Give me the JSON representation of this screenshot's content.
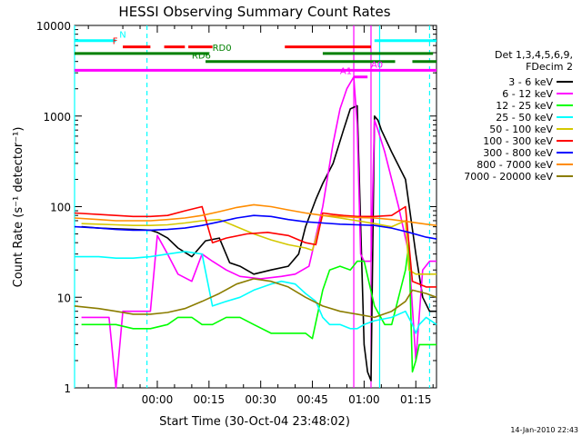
{
  "chart_data": {
    "type": "line",
    "title": "HESSI Observing Summary Count Rates",
    "xlabel": "Start Time (30-Oct-04 23:48:02)",
    "ylabel": "Count Rate (s⁻¹ detector⁻¹)",
    "timestamp": "14-Jan-2010 22:43",
    "y_scale": "log",
    "ylim": [
      1,
      10000
    ],
    "xlim_minutes": [
      -12,
      93
    ],
    "x_ticks": [
      {
        "min": 12,
        "label": "00:00"
      },
      {
        "min": 27,
        "label": "00:15"
      },
      {
        "min": 42,
        "label": "00:30"
      },
      {
        "min": 57,
        "label": "00:45"
      },
      {
        "min": 72,
        "label": "01:00"
      },
      {
        "min": 87,
        "label": "01:15"
      }
    ],
    "y_ticks": [
      {
        "value": 1,
        "label": "1"
      },
      {
        "value": 10,
        "label": "10"
      },
      {
        "value": 100,
        "label": "100"
      },
      {
        "value": 1000,
        "label": "1000"
      },
      {
        "value": 10000,
        "label": "10000"
      }
    ],
    "legend_title": [
      "Det 1,3,4,5,6,9,",
      "FDecim 2"
    ],
    "legend_position": "right",
    "series": [
      {
        "name": "3 - 6 keV",
        "color": "#000000",
        "x": [
          -10,
          -5,
          0,
          5,
          10,
          12,
          15,
          18,
          22,
          26,
          30,
          33,
          36,
          40,
          45,
          50,
          53,
          55,
          58,
          60,
          63,
          66,
          68,
          70,
          72,
          73,
          74,
          75,
          76,
          77,
          80,
          84,
          87,
          89,
          91,
          93
        ],
        "y": [
          60,
          58,
          57,
          56,
          55,
          52,
          45,
          35,
          28,
          42,
          45,
          24,
          22,
          18,
          20,
          22,
          30,
          60,
          120,
          180,
          300,
          700,
          1200,
          1300,
          3,
          1.5,
          1.2,
          1000,
          900,
          700,
          400,
          200,
          30,
          10,
          7,
          7
        ]
      },
      {
        "name": "6 - 12 keV",
        "color": "#ff00ff",
        "x": [
          -10,
          -2,
          0,
          2,
          5,
          10,
          12,
          15,
          18,
          22,
          25,
          28,
          32,
          36,
          42,
          48,
          52,
          56,
          60,
          63,
          65,
          67,
          69,
          70,
          71,
          72,
          73,
          74,
          75,
          76,
          78,
          80,
          82,
          85,
          87,
          89,
          91,
          93
        ],
        "y": [
          6,
          6,
          1,
          7,
          7,
          7,
          48,
          30,
          18,
          15,
          30,
          25,
          20,
          17,
          16,
          17,
          18,
          22,
          100,
          500,
          1200,
          2000,
          2700,
          800,
          30,
          25,
          25,
          25,
          900,
          700,
          400,
          200,
          100,
          30,
          2,
          20,
          25,
          25
        ]
      },
      {
        "name": "12 - 25 keV",
        "color": "#00ff00",
        "x": [
          -10,
          -5,
          0,
          5,
          10,
          15,
          18,
          22,
          25,
          28,
          32,
          36,
          40,
          45,
          50,
          55,
          57,
          60,
          62,
          65,
          68,
          70,
          72,
          75,
          78,
          80,
          82,
          84,
          85,
          86,
          87,
          88,
          90,
          93
        ],
        "y": [
          5,
          5,
          5,
          4.5,
          4.5,
          5,
          6,
          6,
          5,
          5,
          6,
          6,
          5,
          4,
          4,
          4,
          3.5,
          12,
          20,
          22,
          20,
          25,
          25,
          8,
          5,
          5,
          10,
          20,
          40,
          1.5,
          2,
          3,
          3,
          3
        ]
      },
      {
        "name": "25 - 50 keV",
        "color": "#00ffff",
        "x": [
          -12,
          -5,
          0,
          5,
          10,
          15,
          20,
          25,
          28,
          32,
          36,
          40,
          45,
          48,
          52,
          55,
          58,
          60,
          62,
          65,
          68,
          70,
          72,
          75,
          80,
          84,
          86,
          87,
          88,
          90,
          93
        ],
        "y": [
          28,
          28,
          27,
          27,
          28,
          30,
          32,
          30,
          8,
          9,
          10,
          12,
          14,
          15,
          14,
          11,
          9,
          6,
          5,
          5,
          4.5,
          4.5,
          5,
          5.5,
          6,
          7,
          5,
          4,
          5,
          6,
          5
        ]
      },
      {
        "name": "50 - 100 keV",
        "color": "#d4c800",
        "x": [
          -10,
          -5,
          0,
          5,
          10,
          15,
          20,
          25,
          30,
          35,
          40,
          45,
          50,
          55,
          57,
          60,
          65,
          70,
          75,
          80,
          84,
          85,
          87,
          90,
          93
        ],
        "y": [
          65,
          64,
          63,
          62,
          62,
          63,
          66,
          70,
          72,
          60,
          50,
          43,
          38,
          35,
          33,
          80,
          75,
          70,
          65,
          60,
          70,
          20,
          18,
          18,
          18
        ]
      },
      {
        "name": "100 - 300 keV",
        "color": "#ff0000",
        "x": [
          -12,
          -5,
          0,
          5,
          10,
          15,
          20,
          25,
          28,
          32,
          38,
          44,
          50,
          55,
          58,
          60,
          63,
          66,
          70,
          75,
          80,
          84,
          86,
          88,
          90,
          93
        ],
        "y": [
          85,
          82,
          80,
          78,
          78,
          80,
          90,
          100,
          40,
          45,
          50,
          52,
          48,
          40,
          38,
          85,
          82,
          80,
          78,
          78,
          80,
          100,
          15,
          14,
          13,
          13
        ]
      },
      {
        "name": "300 - 800 keV",
        "color": "#0000ff",
        "x": [
          -12,
          -5,
          0,
          5,
          10,
          15,
          20,
          25,
          30,
          35,
          40,
          45,
          50,
          55,
          60,
          65,
          70,
          75,
          80,
          85,
          90,
          93
        ],
        "y": [
          60,
          58,
          56,
          55,
          55,
          56,
          58,
          62,
          68,
          75,
          80,
          78,
          72,
          68,
          66,
          64,
          63,
          62,
          58,
          52,
          46,
          44
        ]
      },
      {
        "name": "800 - 7000 keV",
        "color": "#ff8c00",
        "x": [
          -12,
          -5,
          0,
          5,
          10,
          15,
          20,
          25,
          30,
          35,
          40,
          45,
          50,
          55,
          60,
          65,
          70,
          75,
          80,
          85,
          90,
          93
        ],
        "y": [
          75,
          72,
          70,
          70,
          70,
          72,
          75,
          80,
          88,
          98,
          105,
          100,
          92,
          85,
          80,
          78,
          76,
          75,
          72,
          68,
          64,
          62
        ]
      },
      {
        "name": "7000 - 20000 keV",
        "color": "#8b7d00",
        "x": [
          -12,
          -5,
          0,
          5,
          10,
          15,
          20,
          25,
          30,
          35,
          40,
          45,
          50,
          55,
          60,
          65,
          70,
          75,
          80,
          84,
          86,
          90,
          93
        ],
        "y": [
          8,
          7.5,
          7,
          6.5,
          6.5,
          6.8,
          7.5,
          9,
          11,
          14,
          16,
          15,
          13,
          10,
          8,
          7,
          6.5,
          6,
          7,
          9,
          12,
          11,
          10
        ]
      }
    ],
    "flag_bars": [
      {
        "label": "N",
        "color": "#00ffff",
        "y": 6800,
        "segments": [
          [
            -12,
            0
          ],
          [
            75,
            93
          ]
        ],
        "label_at": 1
      },
      {
        "label": "F",
        "color": "#ff0000",
        "y": 5800,
        "segments": [
          [
            2,
            10
          ],
          [
            14,
            20
          ],
          [
            21,
            28
          ],
          [
            49,
            74
          ]
        ],
        "label_at": -1
      },
      {
        "label": "RD0",
        "color": "#008000",
        "y": 4900,
        "segments": [
          [
            -12,
            27
          ],
          [
            60,
            92
          ]
        ],
        "label_at": 28
      },
      {
        "label": "RD6",
        "color": "#008000",
        "y": 4000,
        "segments": [
          [
            26,
            81
          ],
          [
            86,
            93
          ]
        ],
        "label_at": 22
      },
      {
        "label": "",
        "color": "#ff00ff",
        "y": 3200,
        "segments": [
          [
            -12,
            93
          ]
        ],
        "label_at": null
      },
      {
        "label": "A1",
        "color": "#ff00ff",
        "y": 2700,
        "segments": [
          [
            69,
            73
          ]
        ],
        "label_at": 65
      },
      {
        "label": "A0",
        "color": "#ff00ff",
        "y": 3200,
        "segments": [],
        "label_at": 74
      }
    ],
    "vlines": [
      {
        "min": -12,
        "color": "#00ffff",
        "style": "solid"
      },
      {
        "min": 9,
        "color": "#00ffff",
        "style": "dashed"
      },
      {
        "min": 76.5,
        "color": "#00ffff",
        "style": "solid"
      },
      {
        "min": 91,
        "color": "#00ffff",
        "style": "dashed"
      },
      {
        "min": 69,
        "color": "#ff00ff",
        "style": "solid"
      },
      {
        "min": 74,
        "color": "#ff00ff",
        "style": "solid"
      }
    ]
  }
}
